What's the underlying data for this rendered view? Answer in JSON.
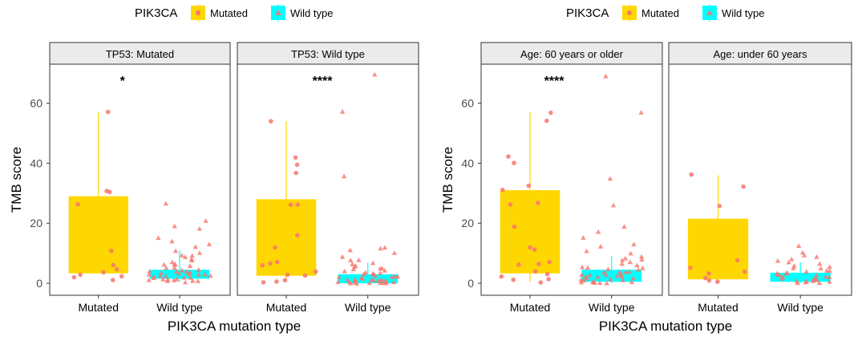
{
  "colors": {
    "mutated": "#FFD700",
    "wild_type": "#00FFFF",
    "points": "#F8766D",
    "strip_bg": "#EBEBEB",
    "panel_border": "#333333",
    "text": "#000000",
    "axis_text": "#4D4D4D"
  },
  "chart_data": [
    {
      "type": "boxplot",
      "legend": {
        "title": "PIK3CA",
        "placement": "top-center",
        "entries": [
          {
            "label": "Mutated",
            "color": "#FFD700",
            "marker": "circle"
          },
          {
            "label": "Wild type",
            "color": "#00FFFF",
            "marker": "triangle"
          }
        ]
      },
      "xlabel": "PIK3CA mutation type",
      "ylabel": "TMB score",
      "ylim": [
        -4,
        73
      ],
      "yticks": [
        0,
        20,
        40,
        60
      ],
      "categories": [
        "Mutated",
        "Wild type"
      ],
      "facets": [
        {
          "strip": "TP53: Mutated",
          "significance": "*",
          "boxes": [
            {
              "group": "Mutated",
              "q1": 3.5,
              "median": 3.5,
              "q3": 29,
              "whisker_low": 3.5,
              "whisker_high": 57,
              "points": [
                57,
                31,
                30.5,
                26.5,
                11,
                6,
                4.5,
                3.5,
                3,
                2.5,
                2,
                1
              ]
            },
            {
              "group": "Wild type",
              "q1": 1.5,
              "median": 3,
              "q3": 4.5,
              "whisker_low": 0.5,
              "whisker_high": 11,
              "points": [
                26.5,
                21,
                19,
                18,
                15,
                14,
                13,
                12,
                11,
                10,
                9.5,
                9,
                8.5,
                8,
                7.5,
                7,
                6.5,
                6,
                6,
                5.5,
                5,
                5,
                4.5,
                4.5,
                4,
                4,
                4,
                3.5,
                3.5,
                3.5,
                3,
                3,
                3,
                3,
                2.5,
                2.5,
                2.5,
                2,
                2,
                2,
                2,
                1.5,
                1.5,
                1.5,
                1,
                1,
                1,
                1,
                0.5,
                0.5
              ]
            }
          ]
        },
        {
          "strip": "TP53: Wild type",
          "significance": "****",
          "boxes": [
            {
              "group": "Mutated",
              "q1": 2.5,
              "median": 6,
              "q3": 28,
              "whisker_low": 0.5,
              "whisker_high": 54,
              "points": [
                54,
                42,
                39.5,
                37,
                26,
                26,
                16,
                12,
                7,
                6.5,
                6,
                4,
                3,
                2.5,
                1,
                0.5,
                0.3
              ]
            },
            {
              "group": "Wild type",
              "q1": 0,
              "median": 1,
              "q3": 3,
              "whisker_low": 0,
              "whisker_high": 7,
              "points": [
                69.5,
                57,
                35.5,
                12,
                11.5,
                11,
                10,
                9,
                8,
                7.5,
                7,
                6.5,
                6,
                5.5,
                5,
                5,
                4.5,
                4,
                4,
                3.5,
                3.5,
                3,
                3,
                3,
                2.5,
                2.5,
                2,
                2,
                2,
                2,
                1.5,
                1.5,
                1.5,
                1.5,
                1,
                1,
                1,
                1,
                1,
                0.5,
                0.5,
                0.5,
                0.5,
                0.3,
                0.3,
                0.2,
                0.2,
                0.1,
                0.1,
                0
              ]
            }
          ]
        }
      ]
    },
    {
      "type": "boxplot",
      "legend": {
        "title": "PIK3CA",
        "placement": "top-center",
        "entries": [
          {
            "label": "Mutated",
            "color": "#FFD700",
            "marker": "circle"
          },
          {
            "label": "Wild type",
            "color": "#00FFFF",
            "marker": "triangle"
          }
        ]
      },
      "xlabel": "PIK3CA mutation type",
      "ylabel": "TMB score",
      "ylim": [
        -4,
        73
      ],
      "yticks": [
        0,
        20,
        40,
        60
      ],
      "categories": [
        "Mutated",
        "Wild type"
      ],
      "facets": [
        {
          "strip": "Age: 60 years or older",
          "significance": "****",
          "boxes": [
            {
              "group": "Mutated",
              "q1": 3.5,
              "median": 3.5,
              "q3": 31,
              "whisker_low": 0.5,
              "whisker_high": 57,
              "points": [
                57,
                54,
                42,
                40,
                32.5,
                31,
                27,
                26,
                19,
                12,
                11,
                7,
                6.5,
                6,
                4,
                3,
                2.5,
                1.5,
                1,
                0.5
              ]
            },
            {
              "group": "Wild type",
              "q1": 0.5,
              "median": 2.5,
              "q3": 4.5,
              "whisker_low": 0,
              "whisker_high": 9,
              "points": [
                69,
                57,
                35,
                26,
                19,
                17,
                15,
                13,
                12,
                11,
                10,
                9,
                8.5,
                8,
                7.5,
                7,
                6.5,
                6,
                5.5,
                5,
                5,
                4.5,
                4.5,
                4,
                4,
                3.5,
                3.5,
                3,
                3,
                3,
                2.5,
                2.5,
                2,
                2,
                2,
                1.5,
                1.5,
                1.5,
                1,
                1,
                1,
                0.5,
                0.5,
                0.5,
                0.3,
                0.2,
                0.1,
                0
              ]
            }
          ]
        },
        {
          "strip": "Age: under 60 years",
          "significance": "",
          "boxes": [
            {
              "group": "Mutated",
              "q1": 1.5,
              "median": 1.5,
              "q3": 21.5,
              "whisker_low": 0,
              "whisker_high": 36,
              "points": [
                36,
                32,
                26,
                7.5,
                5,
                4,
                3.5,
                1.5,
                1,
                0.5
              ]
            },
            {
              "group": "Wild type",
              "q1": 0.5,
              "median": 1.5,
              "q3": 3.5,
              "whisker_low": 0,
              "whisker_high": 7,
              "points": [
                12.5,
                10,
                9.5,
                9,
                8,
                7.5,
                7,
                6.5,
                6,
                5.5,
                5,
                5,
                4.5,
                4,
                4,
                3.5,
                3.5,
                3,
                3,
                2.5,
                2.5,
                2,
                2,
                2,
                1.5,
                1.5,
                1.5,
                1,
                1,
                1,
                0.5,
                0.5,
                0.5,
                0.3,
                0.2,
                0.1
              ]
            }
          ]
        }
      ]
    }
  ]
}
